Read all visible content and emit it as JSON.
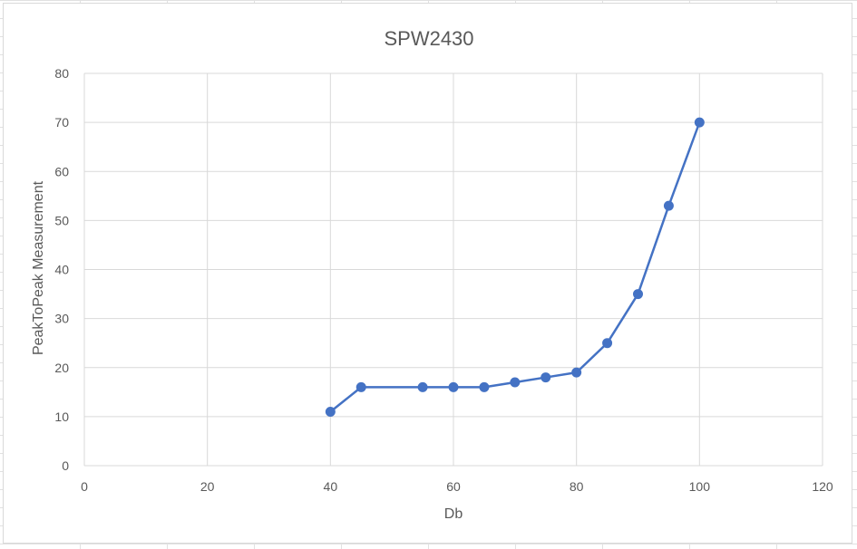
{
  "chart_data": {
    "type": "scatter",
    "title": "SPW2430",
    "xlabel": "Db",
    "ylabel": "PeakToPeak Measurement",
    "xlim": [
      0,
      120
    ],
    "ylim": [
      0,
      80
    ],
    "xticks": [
      0,
      20,
      40,
      60,
      80,
      100,
      120
    ],
    "yticks": [
      0,
      10,
      20,
      30,
      40,
      50,
      60,
      70,
      80
    ],
    "grid": true,
    "legend": "none",
    "series": [
      {
        "color": "#4472c4",
        "marker": "circle",
        "line": "straight",
        "points": [
          {
            "x": 40,
            "y": 11
          },
          {
            "x": 45,
            "y": 16
          },
          {
            "x": 55,
            "y": 16
          },
          {
            "x": 60,
            "y": 16
          },
          {
            "x": 65,
            "y": 16
          },
          {
            "x": 70,
            "y": 17
          },
          {
            "x": 75,
            "y": 18
          },
          {
            "x": 80,
            "y": 19
          },
          {
            "x": 85,
            "y": 25
          },
          {
            "x": 90,
            "y": 35
          },
          {
            "x": 95,
            "y": 53
          },
          {
            "x": 100,
            "y": 70
          }
        ]
      }
    ]
  },
  "colors": {
    "gridline": "#d9d9d9",
    "text": "#595959",
    "series": "#4472c4"
  }
}
